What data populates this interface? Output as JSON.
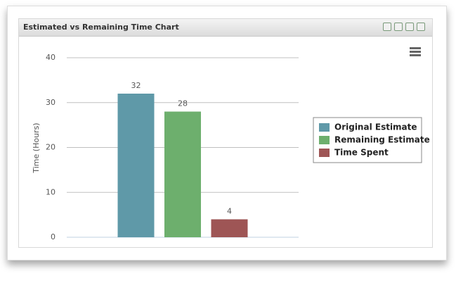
{
  "chart_data": {
    "type": "bar",
    "title": "Estimated vs Remaining Time Chart",
    "y_label": "Time (Hours)",
    "categories": [
      null
    ],
    "series": [
      {
        "name": "Original Estimate",
        "color": "#5f99a8",
        "values": [
          32
        ]
      },
      {
        "name": "Remaining Estimate",
        "color": "#6daf6d",
        "values": [
          28
        ]
      },
      {
        "name": "Time Spent",
        "color": "#9e5555",
        "values": [
          4
        ]
      }
    ],
    "ylim": [
      0,
      40
    ],
    "yticks": [
      0,
      10,
      20,
      30,
      40
    ],
    "grid": true,
    "legend": "right"
  }
}
